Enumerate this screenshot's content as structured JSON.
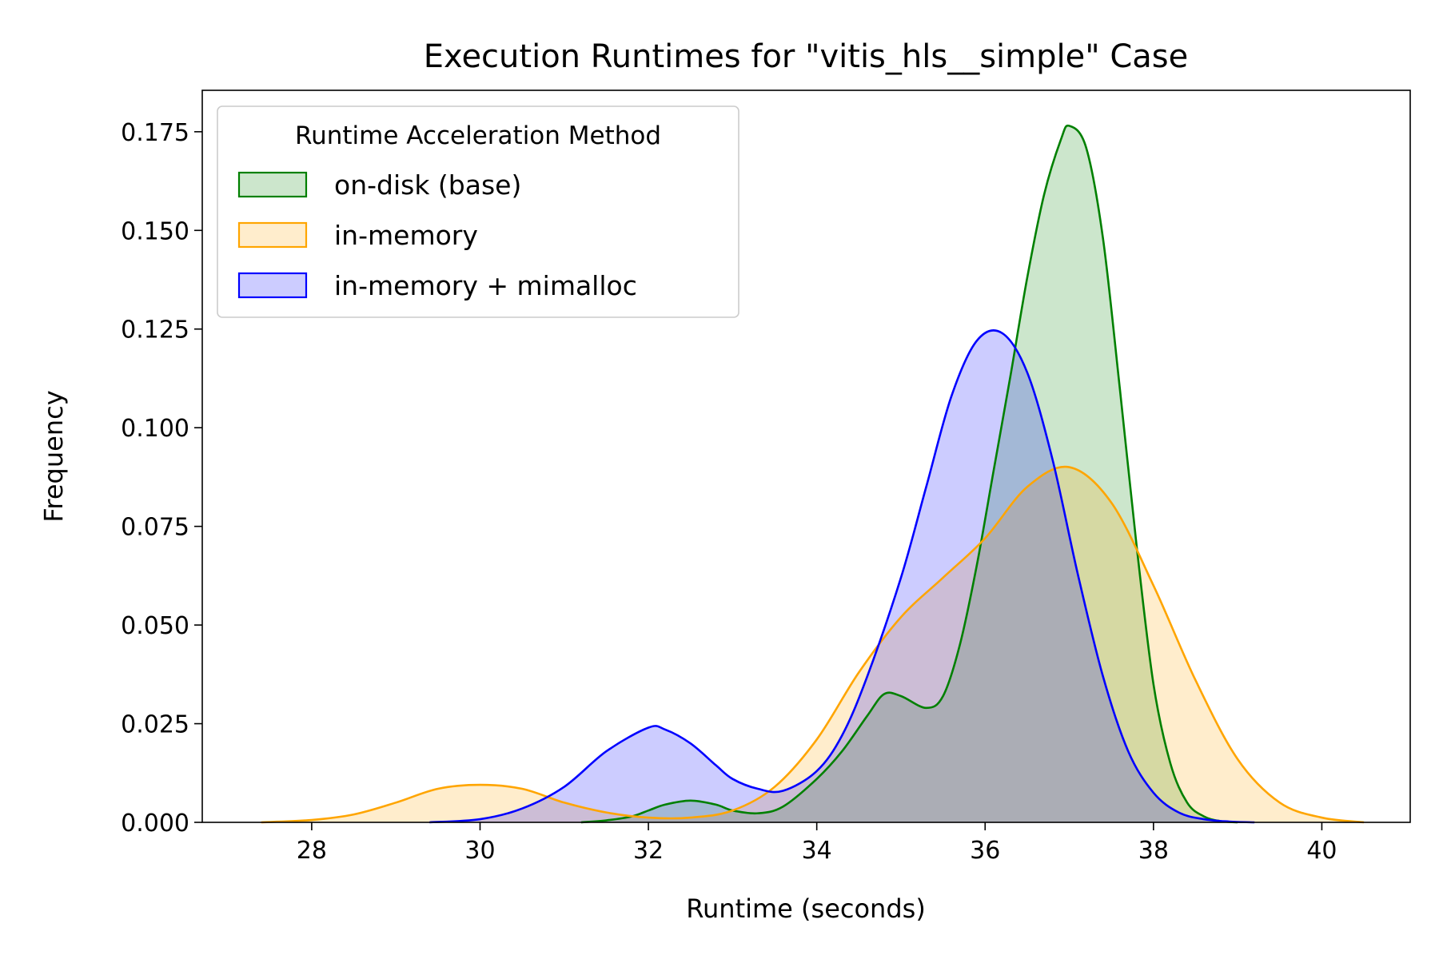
{
  "chart_data": {
    "type": "area",
    "title": "Execution Runtimes for \"vitis_hls__simple\" Case",
    "xlabel": "Runtime (seconds)",
    "ylabel": "Frequency",
    "xlim": [
      26.7,
      41.05
    ],
    "ylim": [
      0,
      0.1855
    ],
    "xticks": [
      28,
      30,
      32,
      34,
      36,
      38,
      40
    ],
    "yticks": [
      0.0,
      0.025,
      0.05,
      0.075,
      0.1,
      0.125,
      0.15,
      0.175
    ],
    "xtick_labels": [
      "28",
      "30",
      "32",
      "34",
      "36",
      "38",
      "40"
    ],
    "ytick_labels": [
      "0.000",
      "0.025",
      "0.050",
      "0.075",
      "0.100",
      "0.125",
      "0.150",
      "0.175"
    ],
    "grid": false,
    "legend": {
      "title": "Runtime Acceleration Method",
      "position": "top-left"
    },
    "series": [
      {
        "name": "on-disk (base)",
        "color": "#008000",
        "fill_opacity": 0.2,
        "x": [
          31.2,
          31.5,
          31.8,
          32.0,
          32.2,
          32.5,
          32.8,
          33.0,
          33.3,
          33.6,
          34.0,
          34.3,
          34.6,
          34.8,
          35.0,
          35.3,
          35.5,
          35.7,
          35.9,
          36.1,
          36.3,
          36.5,
          36.7,
          36.9,
          37.0,
          37.2,
          37.4,
          37.6,
          37.8,
          38.0,
          38.2,
          38.4,
          38.6,
          38.8,
          39.0
        ],
        "y": [
          0.0,
          0.0005,
          0.0015,
          0.003,
          0.0045,
          0.0055,
          0.0045,
          0.003,
          0.0023,
          0.004,
          0.011,
          0.018,
          0.027,
          0.0325,
          0.032,
          0.029,
          0.032,
          0.045,
          0.065,
          0.089,
          0.113,
          0.138,
          0.159,
          0.173,
          0.1765,
          0.171,
          0.148,
          0.11,
          0.07,
          0.035,
          0.015,
          0.005,
          0.0015,
          0.0003,
          0.0
        ]
      },
      {
        "name": "in-memory",
        "color": "#FFA500",
        "fill_opacity": 0.2,
        "x": [
          27.4,
          28.0,
          28.5,
          29.0,
          29.5,
          30.0,
          30.5,
          31.0,
          31.5,
          32.0,
          32.5,
          33.0,
          33.5,
          34.0,
          34.5,
          35.0,
          35.5,
          36.0,
          36.5,
          37.0,
          37.5,
          38.0,
          38.5,
          39.0,
          39.5,
          40.0,
          40.5
        ],
        "y": [
          0.0,
          0.0006,
          0.002,
          0.005,
          0.0085,
          0.0095,
          0.0085,
          0.005,
          0.0025,
          0.0012,
          0.0012,
          0.003,
          0.009,
          0.021,
          0.038,
          0.052,
          0.062,
          0.072,
          0.085,
          0.09,
          0.081,
          0.06,
          0.036,
          0.016,
          0.005,
          0.0012,
          0.0
        ]
      },
      {
        "name": "in-memory + mimalloc",
        "color": "#0000FF",
        "fill_opacity": 0.2,
        "x": [
          29.4,
          30.0,
          30.5,
          31.0,
          31.5,
          32.0,
          32.2,
          32.5,
          32.8,
          33.0,
          33.3,
          33.6,
          34.0,
          34.3,
          34.6,
          35.0,
          35.3,
          35.6,
          35.9,
          36.2,
          36.5,
          36.8,
          37.1,
          37.4,
          37.7,
          38.0,
          38.3,
          38.6,
          38.9,
          39.2
        ],
        "y": [
          0.0,
          0.0008,
          0.0035,
          0.009,
          0.018,
          0.024,
          0.0235,
          0.02,
          0.0145,
          0.011,
          0.0085,
          0.008,
          0.013,
          0.022,
          0.037,
          0.062,
          0.085,
          0.108,
          0.122,
          0.124,
          0.114,
          0.092,
          0.063,
          0.037,
          0.018,
          0.0075,
          0.0025,
          0.0008,
          0.0002,
          0.0
        ]
      }
    ]
  }
}
